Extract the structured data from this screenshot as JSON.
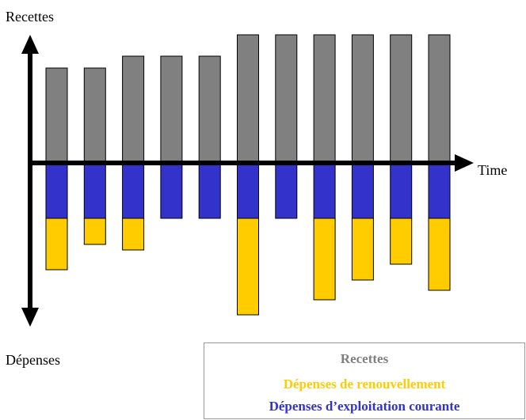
{
  "chart_data": {
    "type": "bar",
    "stacked": true,
    "y_axis_label": "Recettes",
    "x_axis_label": "Time",
    "neg_axis_label": "Dépenses",
    "categories": [
      "",
      "",
      "",
      "",
      "",
      "",
      "",
      "",
      "",
      "",
      ""
    ],
    "series": [
      {
        "name": "Recettes",
        "color": "#808080",
        "values": [
          120,
          120,
          135,
          135,
          135,
          162,
          162,
          162,
          162,
          162,
          162
        ]
      },
      {
        "name": "Dépenses d’exploitation courante",
        "color": "#3333cc",
        "values": [
          -70,
          -70,
          -70,
          -70,
          -70,
          -70,
          -70,
          -70,
          -70,
          -70,
          -70
        ]
      },
      {
        "name": "Dépenses de renouvellement",
        "color": "#ffcc00",
        "values": [
          -65,
          -33,
          -40,
          0,
          0,
          -122,
          0,
          -103,
          -78,
          -58,
          -91
        ]
      }
    ],
    "legend": {
      "position": "bottom-right",
      "items": [
        {
          "label": "Recettes",
          "color": "#808080"
        },
        {
          "label": "Dépenses de renouvellement",
          "color": "#ffcc00"
        },
        {
          "label": "Dépenses d’exploitation courante",
          "color": "#3333cc"
        }
      ]
    }
  }
}
